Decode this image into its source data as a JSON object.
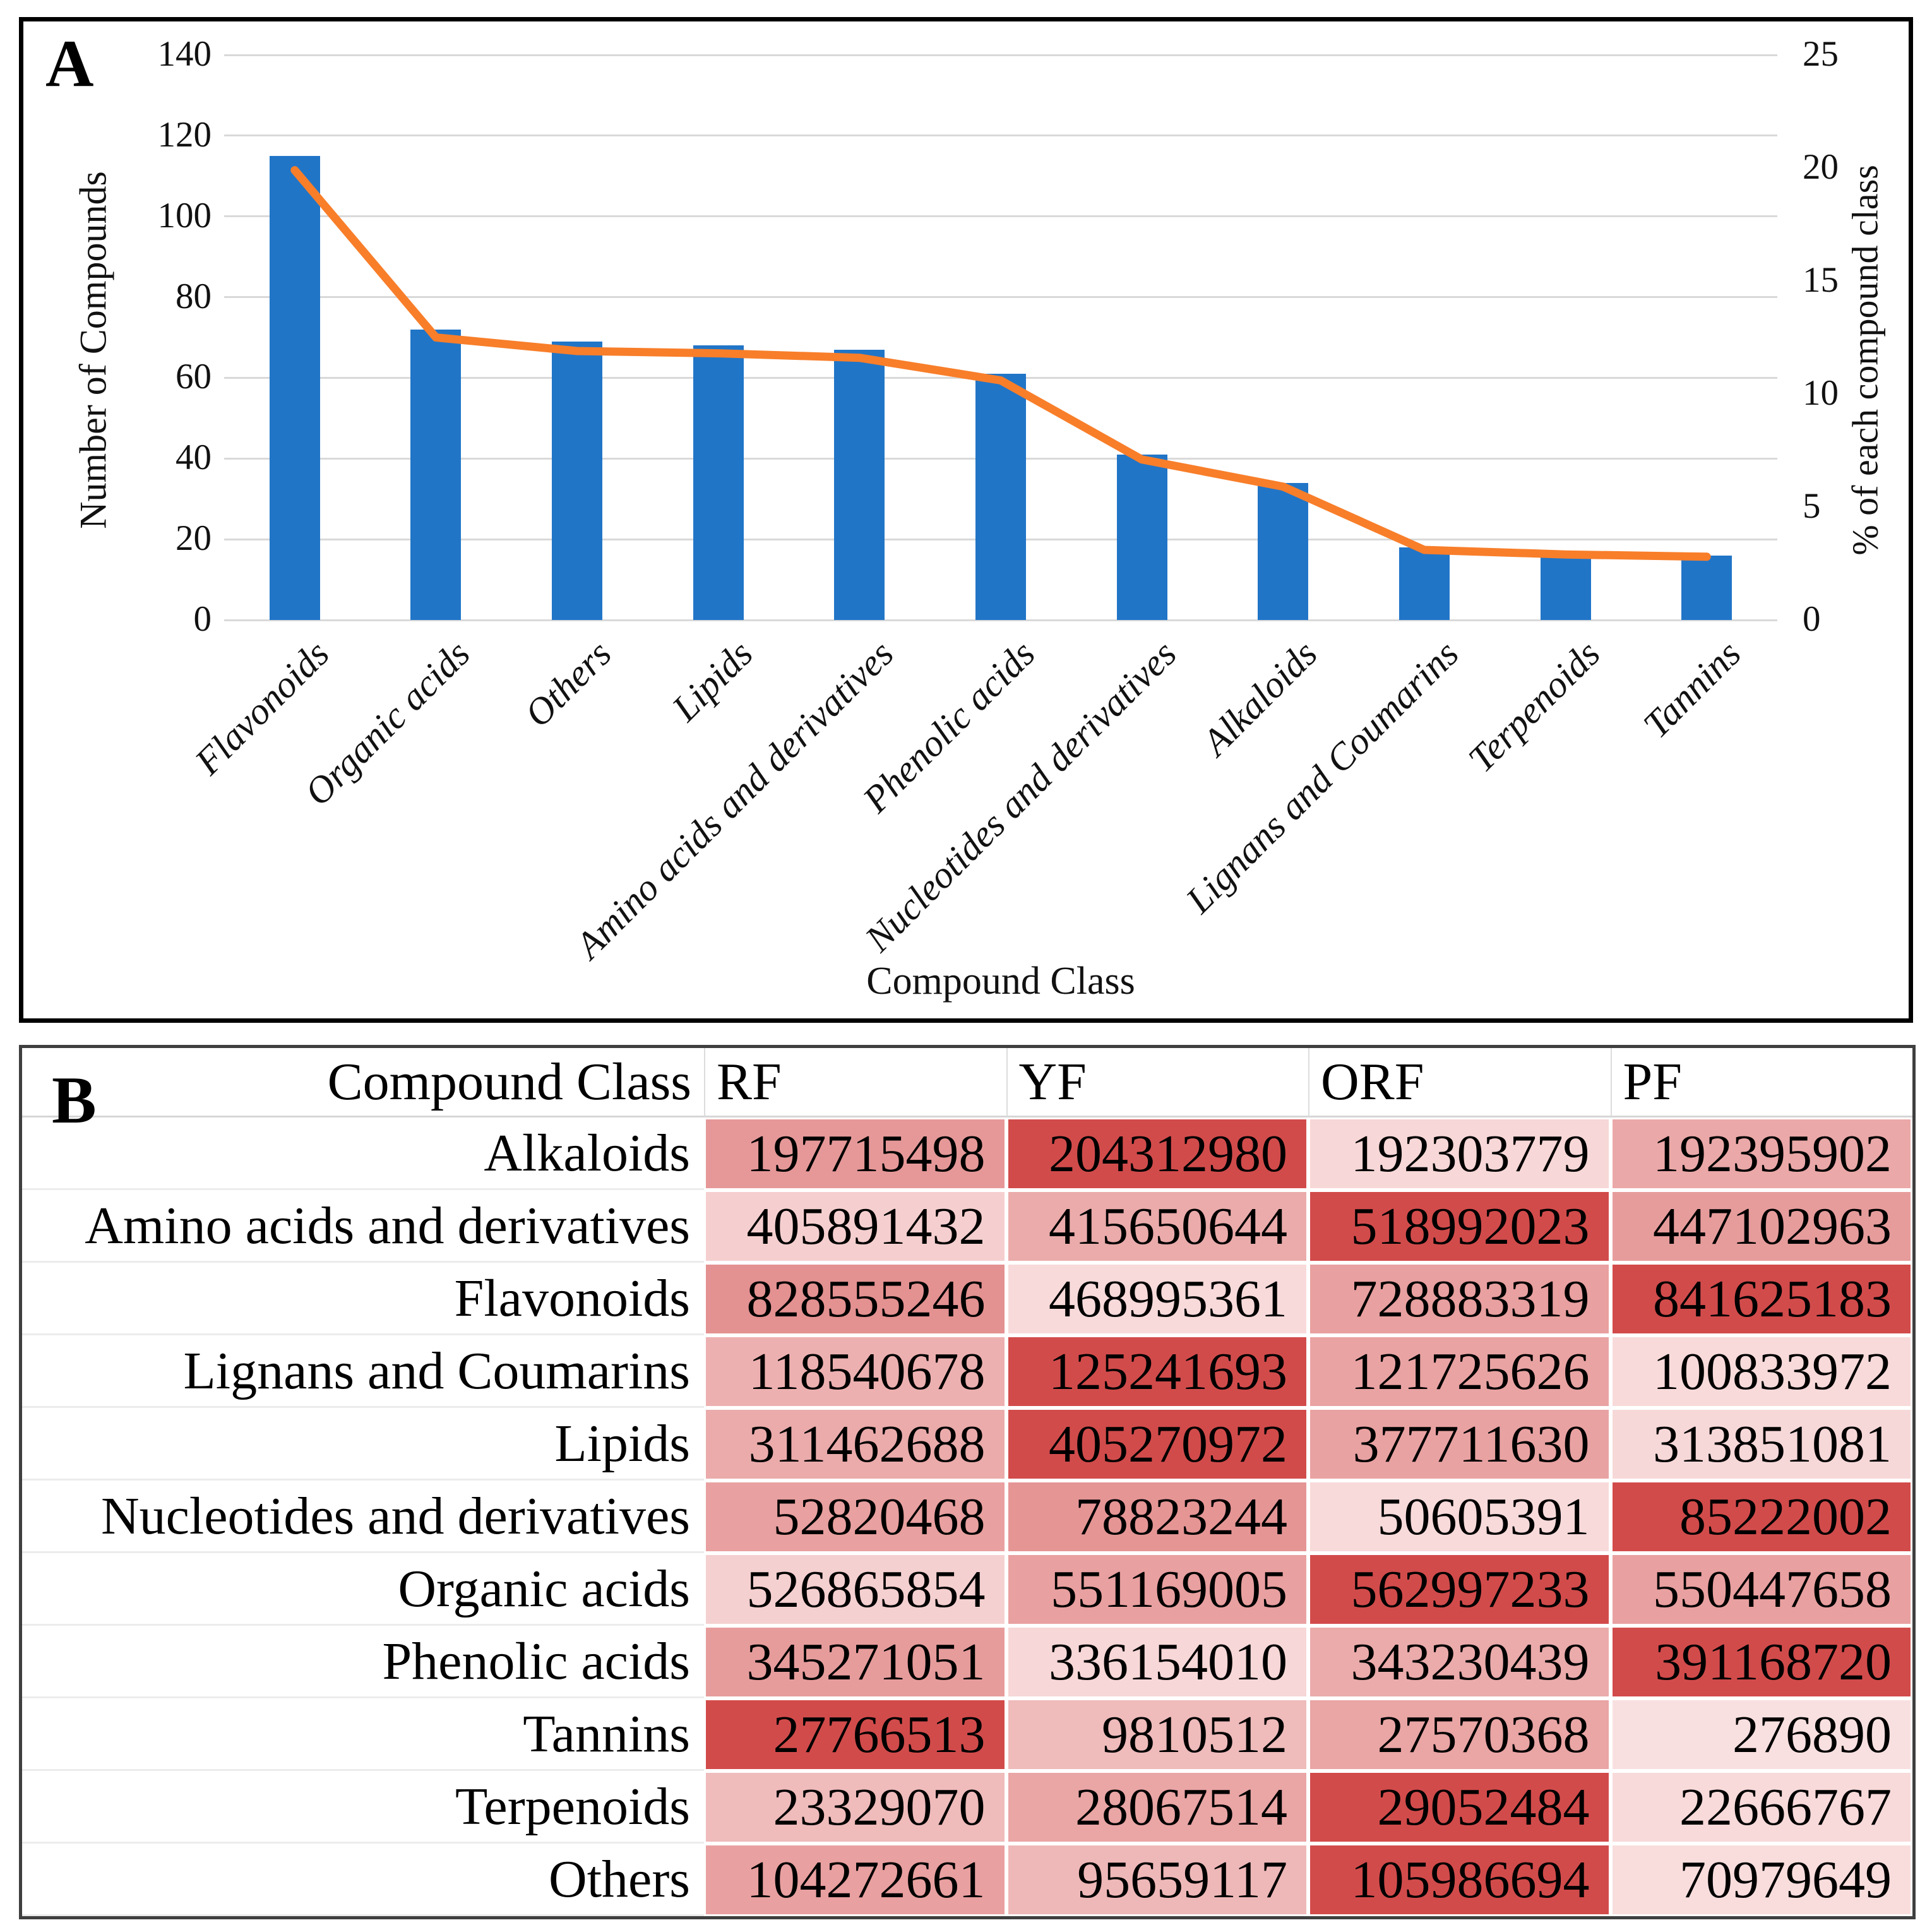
{
  "panels": [
    {
      "label": "A"
    },
    {
      "label": "B"
    }
  ],
  "chart_data": [
    {
      "id": "A",
      "type": "bar",
      "combo": "bar+line",
      "categories": [
        "Flavonoids",
        "Organic acids",
        "Others",
        "Lipids",
        "Amino acids and derivatives",
        "Phenolic acids",
        "Nucleotides and derivatives",
        "Alkaloids",
        "Lignans and Coumarins",
        "Terpenoids",
        "Tannins"
      ],
      "series": [
        {
          "name": "Number of Compounds",
          "type": "bar",
          "axis": "left",
          "values": [
            115,
            72,
            69,
            68,
            67,
            61,
            41,
            34,
            18,
            17,
            16
          ]
        },
        {
          "name": "% of each compound class",
          "type": "line",
          "axis": "right",
          "values": [
            19.9,
            12.5,
            11.9,
            11.8,
            11.6,
            10.6,
            7.1,
            5.9,
            3.1,
            2.9,
            2.8
          ]
        }
      ],
      "title": "",
      "xlabel": "Compound Class",
      "left_axis": {
        "label": "Number of Compounds",
        "min": 0,
        "max": 140,
        "step": 20
      },
      "right_axis": {
        "label": "% of each compound class",
        "min": 0,
        "max": 25,
        "step": 5
      },
      "grid": true,
      "legend": "none",
      "bar_color": "#2175C7",
      "line_color": "#F87E2A",
      "gridline_color": "#D9D9D9"
    },
    {
      "id": "B",
      "type": "heatmap",
      "columns": [
        "Compound Class",
        "RF",
        "YF",
        "ORF",
        "PF"
      ],
      "color_scale": {
        "min_color": "#FBE6E6",
        "max_color": "#D24B4B"
      },
      "rows": [
        {
          "label": "Alkaloids",
          "values": [
            197715498,
            204312980,
            192303779,
            192395902
          ],
          "colors": [
            "#E69898",
            "#D24B4B",
            "#F7D7D7",
            "#EBA8A8"
          ]
        },
        {
          "label": "Amino acids and derivatives",
          "values": [
            405891432,
            415650644,
            518992023,
            447102963
          ],
          "colors": [
            "#F5CFCF",
            "#EBABAB",
            "#D24B4B",
            "#E79C9C"
          ]
        },
        {
          "label": "Flavonoids",
          "values": [
            828555246,
            468995361,
            728883319,
            841625183
          ],
          "colors": [
            "#E49191",
            "#F8DADA",
            "#E9A0A0",
            "#D24B4B"
          ]
        },
        {
          "label": "Lignans and Coumarins",
          "values": [
            118540678,
            125241693,
            121725626,
            100833972
          ],
          "colors": [
            "#EDB0B0",
            "#D24B4B",
            "#E9A3A3",
            "#F8DADA"
          ]
        },
        {
          "label": "Lipids",
          "values": [
            311462688,
            405270972,
            377711630,
            313851081
          ],
          "colors": [
            "#EBABAB",
            "#D24B4B",
            "#E9A2A2",
            "#F7D8D8"
          ]
        },
        {
          "label": "Nucleotides and derivatives",
          "values": [
            52820468,
            78823244,
            50605391,
            85222002
          ],
          "colors": [
            "#E9A0A0",
            "#E69595",
            "#F8DADA",
            "#D24B4B"
          ]
        },
        {
          "label": "Organic acids",
          "values": [
            526865854,
            551169005,
            562997233,
            550447658
          ],
          "colors": [
            "#F5D0D0",
            "#E9A0A0",
            "#D24B4B",
            "#E9A0A0"
          ]
        },
        {
          "label": "Phenolic acids",
          "values": [
            345271051,
            336154010,
            343230439,
            391168720
          ],
          "colors": [
            "#E79C9C",
            "#F7D7D7",
            "#EBABAB",
            "#D24B4B"
          ]
        },
        {
          "label": "Tannins",
          "values": [
            27766513,
            9810512,
            27570368,
            276890
          ],
          "colors": [
            "#D24B4B",
            "#EFBBBB",
            "#EAA5A5",
            "#F9E0E0"
          ]
        },
        {
          "label": "Terpenoids",
          "values": [
            23329070,
            28067514,
            29052484,
            22666767
          ],
          "colors": [
            "#EFBBBB",
            "#EAA5A5",
            "#D24B4B",
            "#F8DADA"
          ]
        },
        {
          "label": "Others",
          "values": [
            104272661,
            95659117,
            105986694,
            70979649
          ],
          "colors": [
            "#E9A0A0",
            "#EFB8B8",
            "#D24B4B",
            "#F9DDDD"
          ]
        }
      ]
    }
  ]
}
